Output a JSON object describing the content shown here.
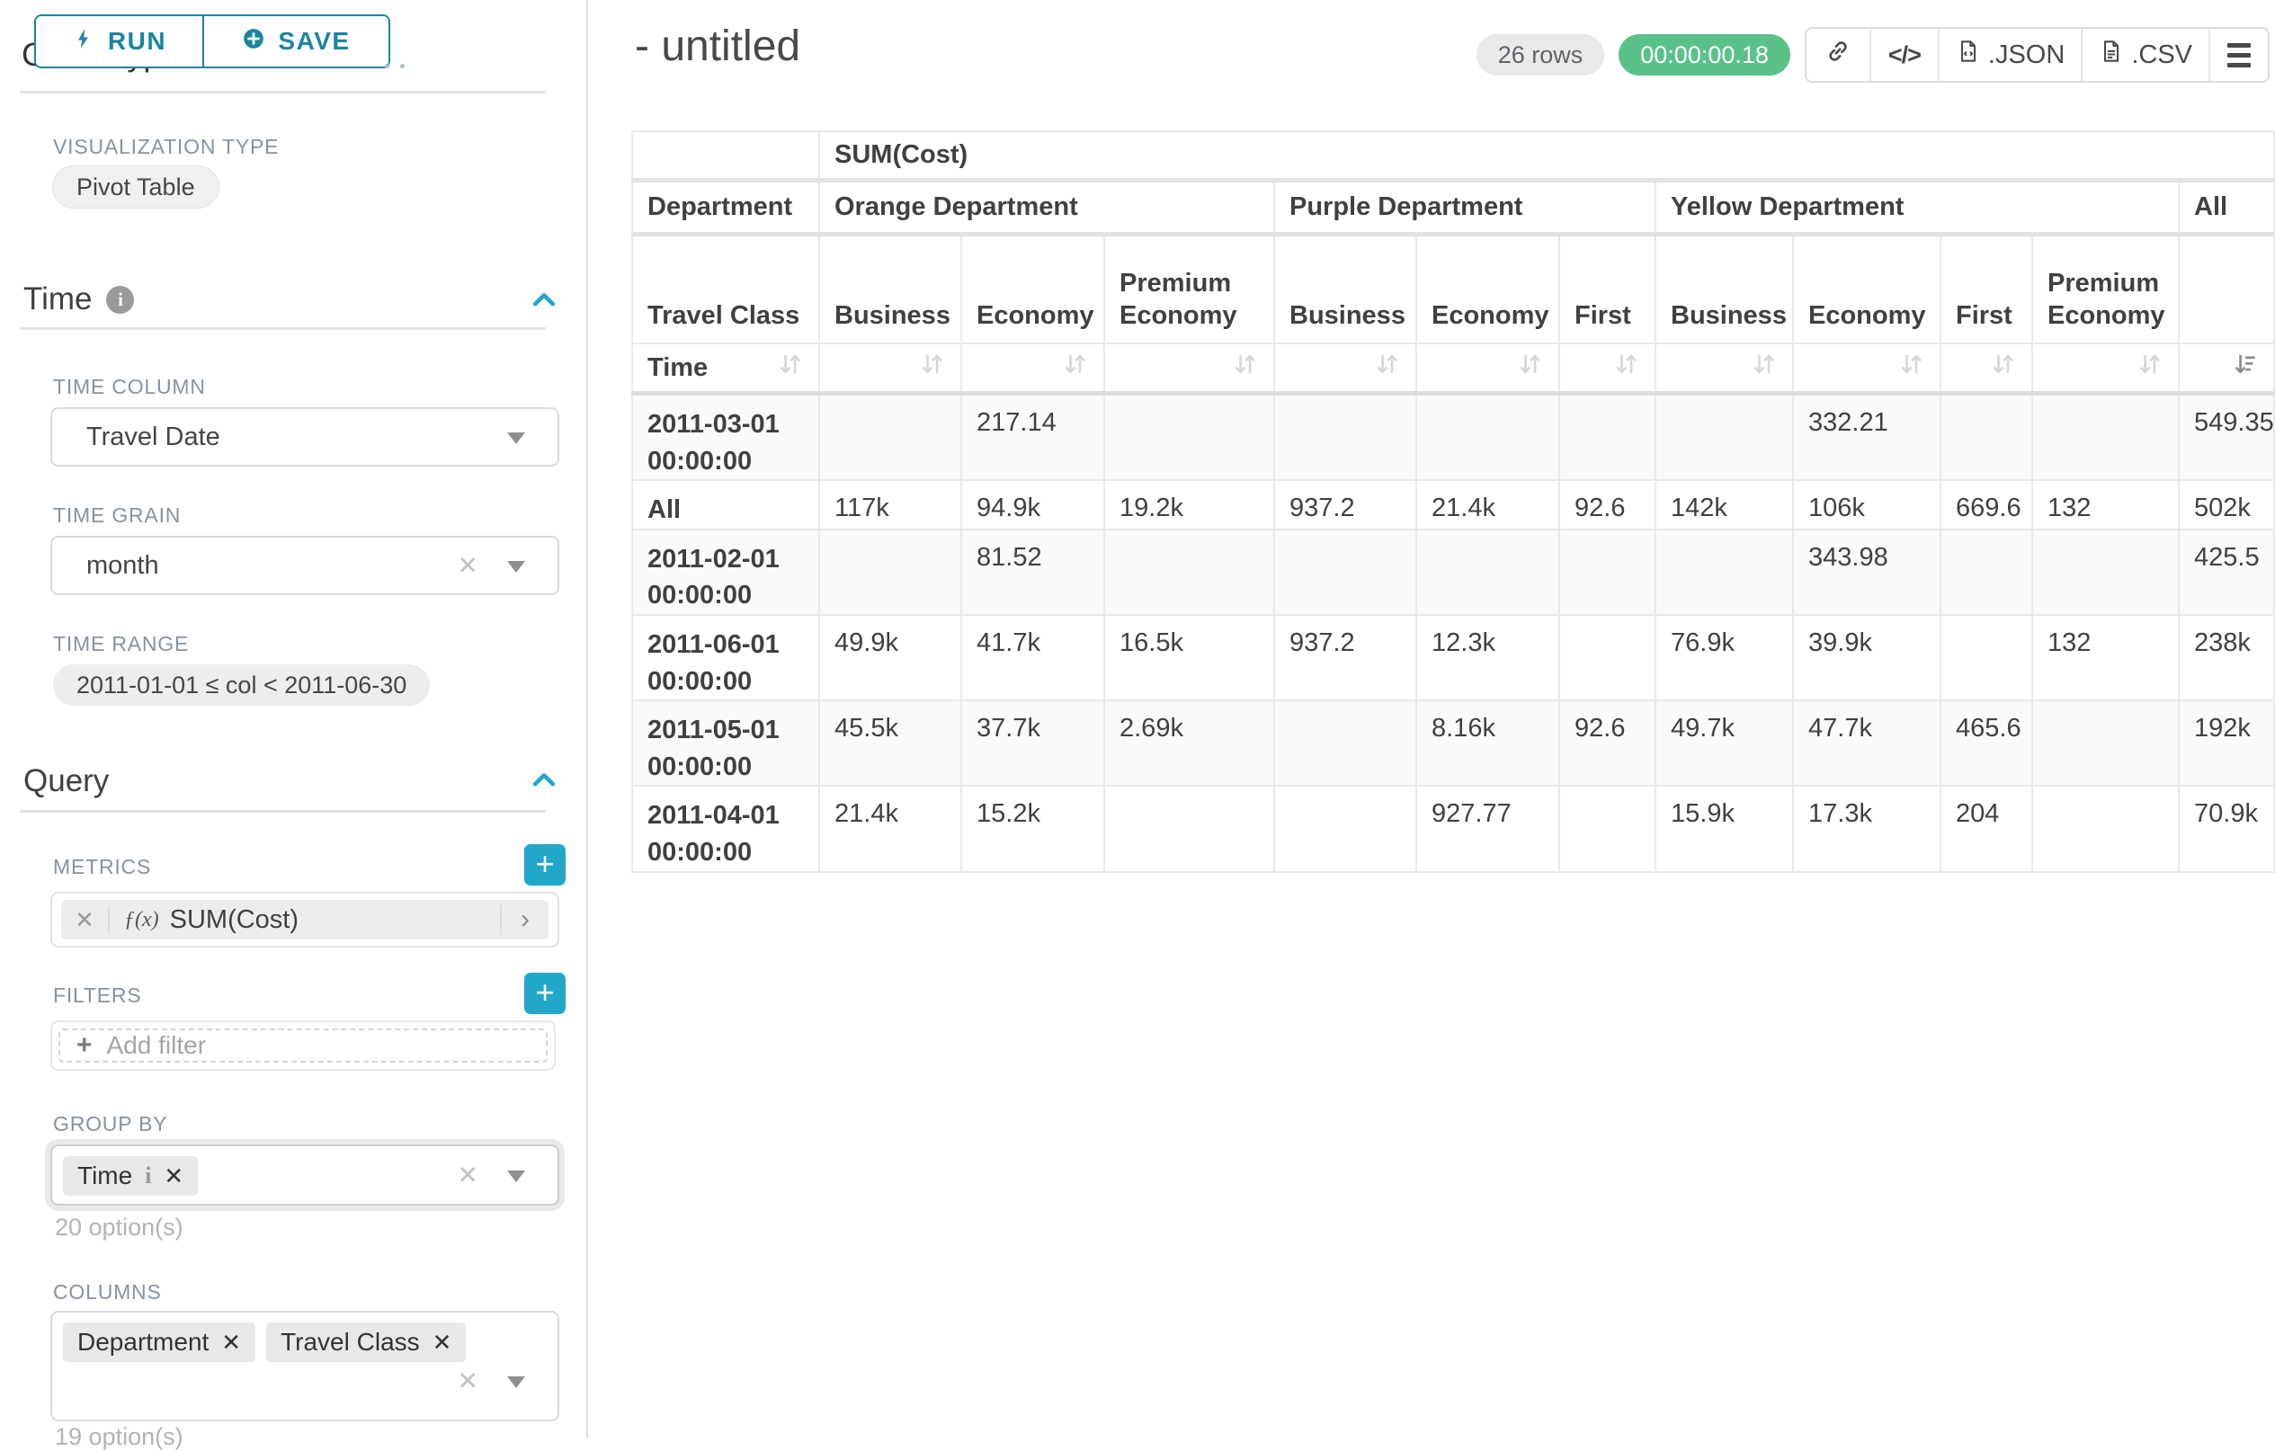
{
  "toolbar": {
    "run": "RUN",
    "save": "SAVE"
  },
  "panel": {
    "chart_type_heading": "Chart Type",
    "viz_label": "VISUALIZATION TYPE",
    "viz_value": "Pivot Table",
    "time_title": "Time",
    "time_column_label": "TIME COLUMN",
    "time_column_value": "Travel Date",
    "time_grain_label": "TIME GRAIN",
    "time_grain_value": "month",
    "time_range_label": "TIME RANGE",
    "time_range_value": "2011-01-01 ≤ col < 2011-06-30",
    "query_title": "Query",
    "metrics_label": "METRICS",
    "metric_fx": "ƒ(x)",
    "metric_name": "SUM(Cost)",
    "filters_label": "FILTERS",
    "add_filter": "Add filter",
    "group_by_label": "GROUP BY",
    "group_by_chips": [
      "Time"
    ],
    "group_by_hint": "20 option(s)",
    "columns_label": "COLUMNS",
    "columns_chips": [
      "Department",
      "Travel Class"
    ],
    "columns_hint": "19 option(s)"
  },
  "header": {
    "title": "- untitled",
    "rows_badge": "26 rows",
    "timer": "00:00:00.18",
    "json_label": ".JSON",
    "csv_label": ".CSV"
  },
  "pivot_table": {
    "metric_header": "SUM(Cost)",
    "department_row_label": "Department",
    "travel_class_row_label": "Travel Class",
    "time_row_label": "Time",
    "groups": [
      {
        "name": "Orange Department",
        "cols": [
          "Business",
          "Economy",
          "Premium Economy"
        ]
      },
      {
        "name": "Purple Department",
        "cols": [
          "Business",
          "Economy",
          "First"
        ]
      },
      {
        "name": "Yellow Department",
        "cols": [
          "Business",
          "Economy",
          "First",
          "Premium Economy"
        ]
      },
      {
        "name": "All",
        "cols": [
          ""
        ]
      }
    ],
    "rows": [
      {
        "label": "2011-03-01 00:00:00",
        "values": [
          "",
          "217.14",
          "",
          "",
          "",
          "",
          "",
          "332.21",
          "",
          "",
          "549.35"
        ]
      },
      {
        "label": "All",
        "values": [
          "117k",
          "94.9k",
          "19.2k",
          "937.2",
          "21.4k",
          "92.6",
          "142k",
          "106k",
          "669.6",
          "132",
          "502k"
        ]
      },
      {
        "label": "2011-02-01 00:00:00",
        "values": [
          "",
          "81.52",
          "",
          "",
          "",
          "",
          "",
          "343.98",
          "",
          "",
          "425.5"
        ]
      },
      {
        "label": "2011-06-01 00:00:00",
        "values": [
          "49.9k",
          "41.7k",
          "16.5k",
          "937.2",
          "12.3k",
          "",
          "76.9k",
          "39.9k",
          "",
          "132",
          "238k"
        ]
      },
      {
        "label": "2011-05-01 00:00:00",
        "values": [
          "45.5k",
          "37.7k",
          "2.69k",
          "",
          "8.16k",
          "92.6",
          "49.7k",
          "47.7k",
          "465.6",
          "",
          "192k"
        ]
      },
      {
        "label": "2011-04-01 00:00:00",
        "values": [
          "21.4k",
          "15.2k",
          "",
          "",
          "927.77",
          "",
          "15.9k",
          "17.3k",
          "204",
          "",
          "70.9k"
        ]
      }
    ]
  }
}
